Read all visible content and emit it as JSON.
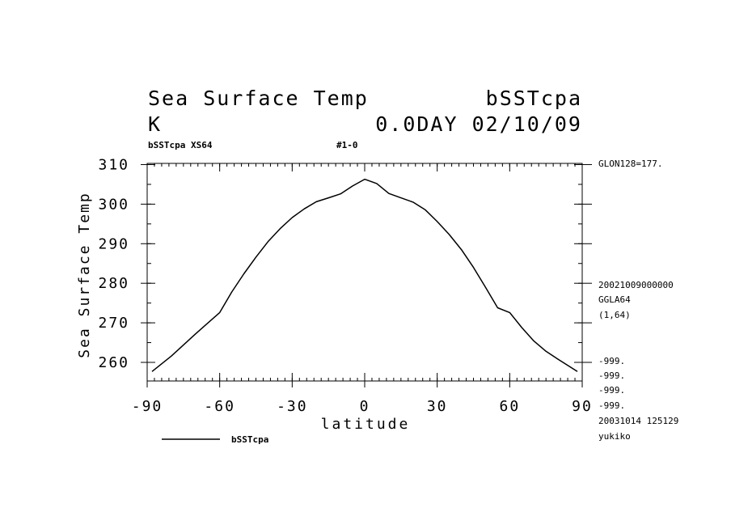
{
  "header": {
    "title_left": "Sea Surface Temp",
    "title_right": "bSSTcpa",
    "units": "K",
    "time_info": "0.0DAY 02/10/09",
    "subtitle_left": "bSSTcpa XS64",
    "subtitle_center": "#1-0"
  },
  "side_info": {
    "glon": "GLON128=177.",
    "date_code": "20021009000000",
    "grid": "GGLA64",
    "index": "(1,64)",
    "missing": [
      "-999.",
      "-999.",
      "-999.",
      "-999."
    ],
    "timestamp": "20031014 125129",
    "user": "yukiko"
  },
  "chart_data": {
    "type": "line",
    "xlabel": "latitude",
    "ylabel": "Sea Surface Temp",
    "xlim": [
      -90,
      90
    ],
    "ylim": [
      255.3,
      310.3
    ],
    "xticks": [
      -90,
      -60,
      -30,
      0,
      30,
      60,
      90
    ],
    "xtick_labels": [
      "-90",
      "-60",
      "-30",
      "0",
      "30",
      "60",
      "90"
    ],
    "yticks": [
      260,
      270,
      280,
      290,
      300,
      310
    ],
    "ytick_labels": [
      "260",
      "270",
      "280",
      "290",
      "300",
      "310"
    ],
    "grid": false,
    "legend_position": "bottom-left",
    "series": [
      {
        "name": "bSSTcpa",
        "x": [
          -88,
          -80,
          -70,
          -60,
          -55,
          -50,
          -45,
          -40,
          -35,
          -30,
          -25,
          -20,
          -15,
          -10,
          -5,
          0,
          5,
          10,
          15,
          20,
          25,
          30,
          35,
          40,
          45,
          50,
          55,
          60,
          65,
          70,
          75,
          80,
          88
        ],
        "y": [
          257.7,
          261.6,
          267.2,
          272.6,
          277.8,
          282.4,
          286.6,
          290.5,
          293.8,
          296.6,
          298.8,
          300.6,
          301.6,
          302.6,
          304.6,
          306.3,
          305.2,
          302.7,
          301.6,
          300.5,
          298.6,
          295.6,
          292.3,
          288.5,
          284.0,
          279.0,
          273.8,
          272.6,
          268.8,
          265.4,
          262.8,
          260.8,
          257.7
        ]
      }
    ]
  }
}
